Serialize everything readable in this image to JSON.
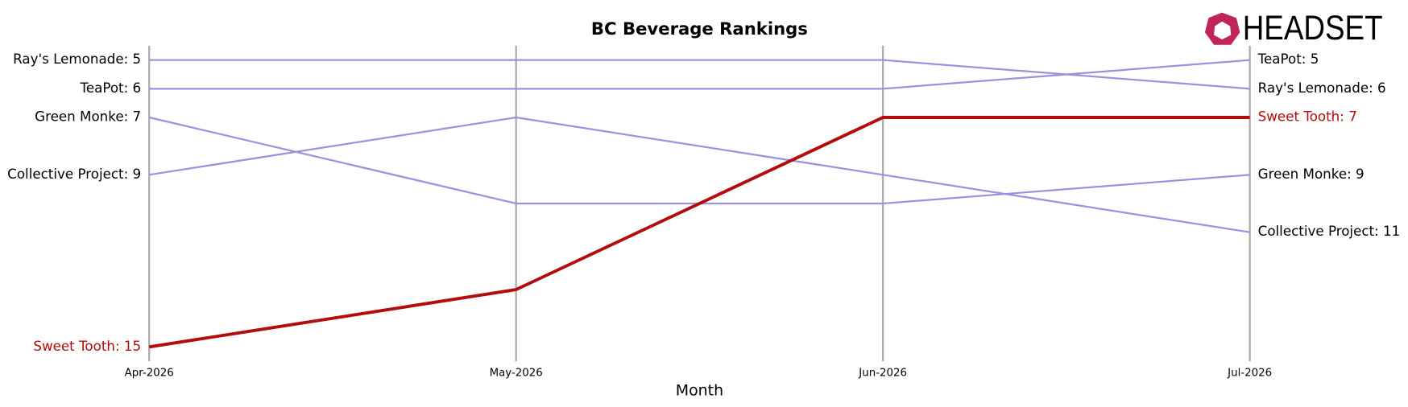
{
  "chart_data": {
    "type": "bump",
    "title": "BC Beverage Rankings",
    "logo": "HEADSET",
    "xlabel": "Month",
    "categories": [
      "Apr-2026",
      "May-2026",
      "Jun-2026",
      "Jul-2026"
    ],
    "ylim": [
      15.5,
      4.5
    ],
    "series": [
      {
        "color": "#9d90dc",
        "values": [
          5,
          5,
          5,
          6
        ],
        "value_labels": [
          "Ray's Lemonade: 5",
          null,
          null,
          "Ray's Lemonade: 6"
        ]
      },
      {
        "color": "#9d90dc",
        "values": [
          6,
          6,
          6,
          5
        ],
        "value_labels": [
          "TeaPot: 6",
          null,
          null,
          "TeaPot: 5"
        ]
      },
      {
        "color": "#9d90dc",
        "values": [
          7,
          10,
          10,
          9
        ],
        "value_labels": [
          "Green Monke: 7",
          null,
          null,
          "Green Monke: 9"
        ]
      },
      {
        "color": "#9d90dc",
        "values": [
          9,
          7,
          9,
          11
        ],
        "value_labels": [
          "Collective Project: 9",
          null,
          null,
          "Collective Project: 11"
        ]
      },
      {
        "color": "#b30c0c",
        "values": [
          15,
          13,
          7,
          7
        ],
        "value_labels": [
          "Sweet Tooth: 15",
          null,
          null,
          "Sweet Tooth: 7"
        ]
      }
    ]
  }
}
